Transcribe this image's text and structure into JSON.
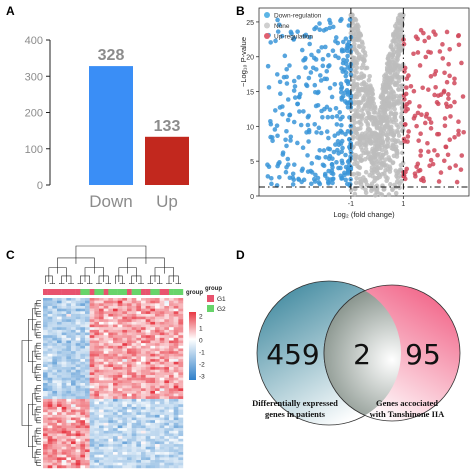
{
  "panels": {
    "a": "A",
    "b": "B",
    "c": "C",
    "d": "D"
  },
  "chart_data": [
    {
      "type": "bar",
      "panel": "A",
      "categories": [
        "Down",
        "Up"
      ],
      "values": [
        328,
        133
      ],
      "data_labels": [
        "328",
        "133"
      ],
      "ylim": [
        0,
        400
      ],
      "yticks": [
        "0",
        "100",
        "200",
        "300",
        "400"
      ],
      "colors": [
        "#3a8ef6",
        "#c2281e"
      ],
      "label_colors": [
        "#8c8c8c",
        "#8c8c8c"
      ],
      "grid": false
    },
    {
      "type": "scatter",
      "panel": "B",
      "ylabel": "−Log₁₀ P-value",
      "xlabel": "Log₂ (fold change)",
      "xlim": [
        -4.5,
        3.5
      ],
      "ylim": [
        0,
        27
      ],
      "xticks": [
        "-1",
        "1"
      ],
      "yticks": [
        "0",
        "5",
        "10",
        "15",
        "20",
        "25"
      ],
      "legend": {
        "placement": "top-left",
        "entries": [
          {
            "name": "Down-regulation",
            "color": "#5bb4e5"
          },
          {
            "name": "None",
            "color": "#cfcfcf"
          },
          {
            "name": "Up-regulation",
            "color": "#e06070"
          }
        ]
      },
      "thresholds": {
        "fold_change": [
          -1,
          1
        ],
        "p_value_line": 1.3
      },
      "groups": {
        "down": {
          "count": 328,
          "color": "#3a95d8"
        },
        "none": {
          "color": "#bdbdbd"
        },
        "up": {
          "count": 133,
          "color": "#d0485a"
        }
      }
    },
    {
      "type": "heatmap",
      "panel": "C",
      "annotation_title": "group",
      "legend_title": "group",
      "legend_entries": [
        {
          "name": "G1",
          "color": "#e8536e"
        },
        {
          "name": "G2",
          "color": "#67d46a"
        }
      ],
      "scale_ticks": [
        "2",
        "1",
        "0",
        "-1",
        "-2",
        "-3"
      ],
      "scale_colors": [
        "#e83844",
        "#ffffff",
        "#2e7fc9"
      ],
      "column_groups": [
        "G1",
        "G1",
        "G1",
        "G1",
        "G1",
        "G1",
        "G1",
        "G1",
        "G2",
        "G2",
        "G1",
        "G2",
        "G2",
        "G1",
        "G2",
        "G2",
        "G2",
        "G2",
        "G1",
        "G2",
        "G2",
        "G1",
        "G1",
        "G2",
        "G2",
        "G1",
        "G1",
        "G2",
        "G2",
        "G2"
      ]
    },
    {
      "type": "venn",
      "panel": "D",
      "sets": [
        {
          "count": "459",
          "label_line1": "Differentially expressed",
          "label_line2": "genes in patients",
          "color": "#2e7e96"
        },
        {
          "count": "95",
          "label_line1": "Genes accociated",
          "label_line2": "with Tanshinone IIA",
          "color": "#f0527a"
        }
      ],
      "intersection": "2"
    }
  ]
}
